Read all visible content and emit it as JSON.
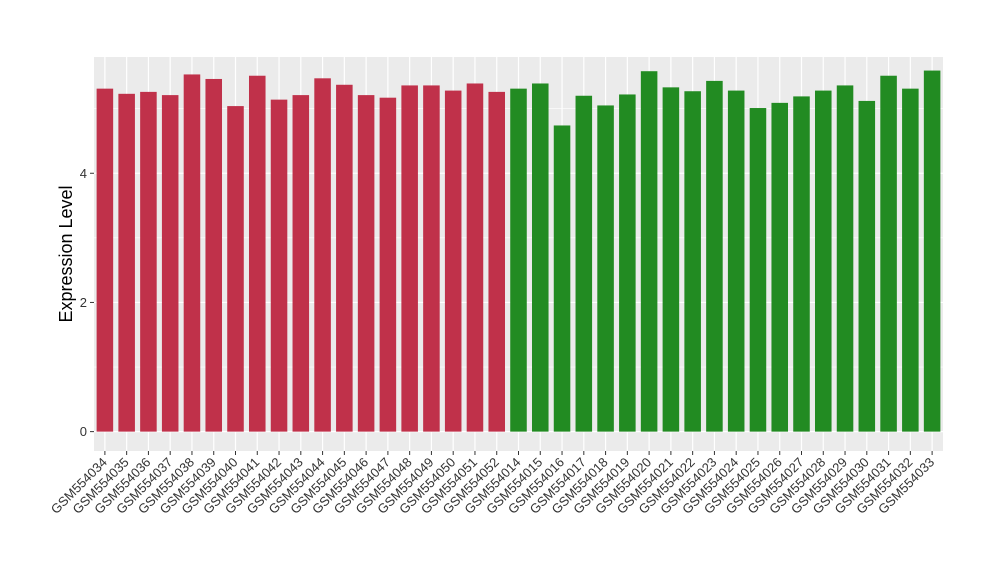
{
  "chart_data": {
    "type": "bar",
    "title": "",
    "xlabel": "",
    "ylabel": "Expression Level",
    "ylim": [
      -0.3,
      5.8
    ],
    "yticks": [
      0,
      2,
      4
    ],
    "grid": true,
    "legend": "none",
    "colors": {
      "group1": "#C0314A",
      "group2": "#228B22",
      "panel": "#EBEBEB",
      "grid": "#FFFFFF"
    },
    "categories": [
      "GSM554034",
      "GSM554035",
      "GSM554036",
      "GSM554037",
      "GSM554038",
      "GSM554039",
      "GSM554040",
      "GSM554041",
      "GSM554042",
      "GSM554043",
      "GSM554044",
      "GSM554045",
      "GSM554046",
      "GSM554047",
      "GSM554048",
      "GSM554049",
      "GSM554050",
      "GSM554051",
      "GSM554052",
      "GSM554014",
      "GSM554015",
      "GSM554016",
      "GSM554017",
      "GSM554018",
      "GSM554019",
      "GSM554020",
      "GSM554021",
      "GSM554022",
      "GSM554023",
      "GSM554024",
      "GSM554025",
      "GSM554026",
      "GSM554027",
      "GSM554028",
      "GSM554029",
      "GSM554030",
      "GSM554031",
      "GSM554032",
      "GSM554033"
    ],
    "values": [
      5.31,
      5.23,
      5.26,
      5.21,
      5.53,
      5.46,
      5.04,
      5.51,
      5.14,
      5.21,
      5.47,
      5.37,
      5.21,
      5.17,
      5.36,
      5.36,
      5.28,
      5.39,
      5.26,
      5.31,
      5.39,
      4.74,
      5.2,
      5.05,
      5.22,
      5.58,
      5.33,
      5.27,
      5.43,
      5.28,
      5.01,
      5.09,
      5.19,
      5.28,
      5.36,
      5.12,
      5.51,
      5.31,
      5.59
    ],
    "groups": [
      "group1",
      "group1",
      "group1",
      "group1",
      "group1",
      "group1",
      "group1",
      "group1",
      "group1",
      "group1",
      "group1",
      "group1",
      "group1",
      "group1",
      "group1",
      "group1",
      "group1",
      "group1",
      "group1",
      "group2",
      "group2",
      "group2",
      "group2",
      "group2",
      "group2",
      "group2",
      "group2",
      "group2",
      "group2",
      "group2",
      "group2",
      "group2",
      "group2",
      "group2",
      "group2",
      "group2",
      "group2",
      "group2",
      "group2"
    ]
  }
}
